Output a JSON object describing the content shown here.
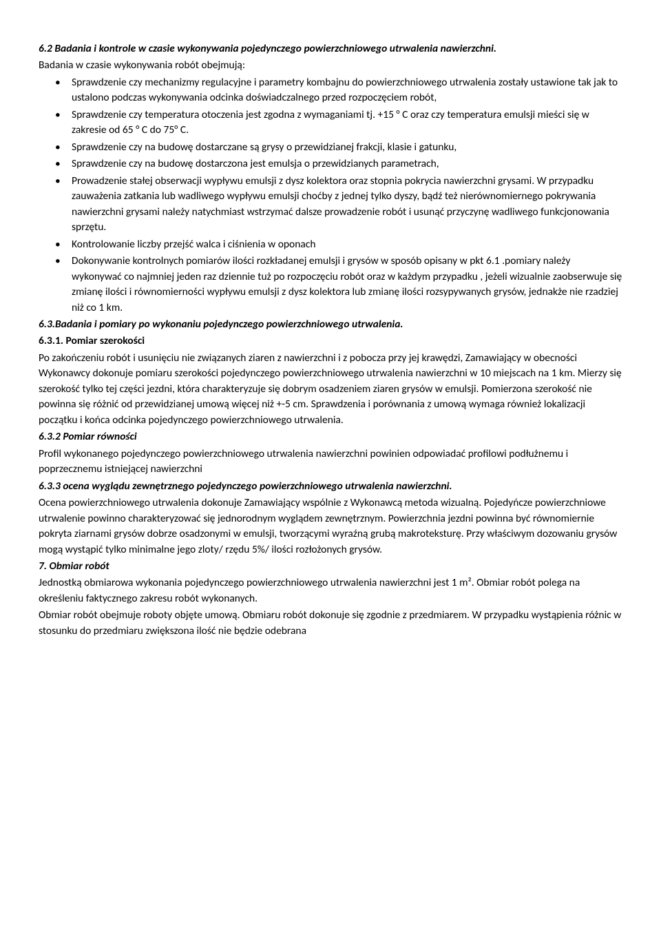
{
  "section_6_2": {
    "title": "6.2 Badania i kontrole w czasie wykonywania pojedynczego powierzchniowego utrwalenia nawierzchni.",
    "intro": "Badania w czasie wykonywania robót obejmują:",
    "bullets": [
      "Sprawdzenie czy mechanizmy regulacyjne i parametry kombajnu do powierzchniowego utrwalenia zostały ustawione tak jak to ustalono podczas wykonywania odcinka doświadczalnego przed rozpoczęciem robót,",
      "Sprawdzenie czy temperatura otoczenia jest zgodna z wymaganiami tj. +15 ° C oraz czy temperatura emulsji mieści się w zakresie od 65 ° C do 75° C.",
      "Sprawdzenie czy na budowę dostarczane są grysy o przewidzianej frakcji, klasie i gatunku,",
      "Sprawdzenie czy na budowę dostarczona jest emulsja o przewidzianych parametrach,",
      "Prowadzenie stałej obserwacji wypływu emulsji  z dysz kolektora oraz stopnia pokrycia nawierzchni grysami. W przypadku zauważenia zatkania lub wadliwego wypływu emulsji choćby z jednej tylko dyszy, bądź też nierównomiernego pokrywania nawierzchni grysami należy natychmiast wstrzymać dalsze prowadzenie robót i usunąć przyczynę wadliwego funkcjonowania sprzętu.",
      "Kontrolowanie liczby przejść walca i ciśnienia w oponach",
      "Dokonywanie kontrolnych pomiarów ilości rozkładanej emulsji i grysów w sposób opisany w pkt 6.1 .pomiary należy wykonywać co najmniej jeden raz dziennie tuż po rozpoczęciu robót oraz w każdym przypadku , jeżeli wizualnie zaobserwuje się zmianę ilości i równomierności wypływu emulsji z dysz kolektora lub zmianę ilości rozsypywanych grysów, jednakże nie rzadziej niż co 1 km."
    ]
  },
  "section_6_3": {
    "title": "6.3.Badania i pomiary po wykonaniu pojedynczego powierzchniowego utrwalenia."
  },
  "section_6_3_1": {
    "title": "6.3.1. Pomiar szerokości",
    "body": "Po zakończeniu robót i usunięciu nie związanych ziaren z nawierzchni i z pobocza przy jej krawędzi, Zamawiający w obecności Wykonawcy dokonuje pomiaru szerokości pojedynczego powierzchniowego utrwalenia nawierzchni w 10 miejscach na 1 km. Mierzy się szerokość tylko tej części jezdni, która charakteryzuje się dobrym osadzeniem ziaren grysów w emulsji. Pomierzona szerokość nie powinna się różnić od przewidzianej umową więcej niż +-5 cm. Sprawdzenia i porównania z umową wymaga również lokalizacji początku i końca odcinka pojedynczego powierzchniowego utrwalenia."
  },
  "section_6_3_2": {
    "title": "6.3.2 Pomiar  równości",
    "body": "Profil wykonanego pojedynczego powierzchniowego utrwalenia nawierzchni powinien odpowiadać profilowi podłużnemu i poprzecznemu istniejącej nawierzchni"
  },
  "section_6_3_3": {
    "title": "6.3.3 ocena wyglądu zewnętrznego pojedynczego powierzchniowego utrwalenia nawierzchni.",
    "body": "Ocena powierzchniowego utrwalenia dokonuje Zamawiający wspólnie z Wykonawcą metoda wizualną. Pojedyńcze powierzchniowe utrwalenie powinno charakteryzować się jednorodnym wyglądem zewnętrznym. Powierzchnia jezdni powinna być równomiernie pokryta ziarnami grysów dobrze osadzonymi w emulsji, tworzącymi wyraźną grubą makroteksturę. Przy właściwym dozowaniu grysów mogą wystąpić tylko minimalne jego zloty/ rzędu 5%/ ilości rozłożonych grysów."
  },
  "section_7": {
    "title": "7. Obmiar robót",
    "body": "Jednostką obmiarowa wykonania pojedynczego powierzchniowego utrwalenia nawierzchni jest 1 m². Obmiar robót polega na określeniu faktycznego zakresu robót wykonanych.",
    "body2": "Obmiar robót obejmuje roboty objęte umową. Obmiaru robót dokonuje się zgodnie z przedmiarem. W przypadku wystąpienia różnic w stosunku do przedmiaru zwiększona ilość nie będzie odebrana"
  }
}
